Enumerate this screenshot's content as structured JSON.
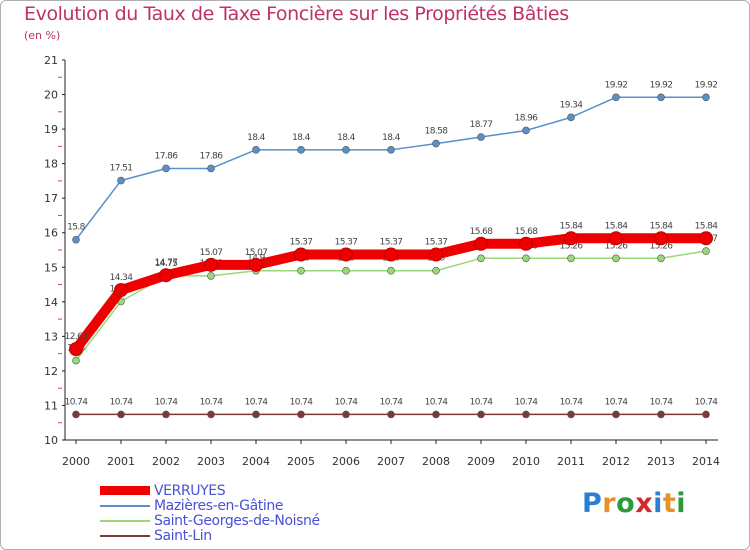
{
  "header": {
    "title": "Evolution du Taux de Taxe Foncière sur les Propriétés Bâties",
    "unit": "(en %)"
  },
  "logo": {
    "letters": [
      "P",
      "r",
      "o",
      "x",
      "i",
      "t",
      "i"
    ],
    "colors": [
      "#2a7fd4",
      "#e8902a",
      "#2a9a3a",
      "#d02a2a",
      "#2a7fd4",
      "#e8902a",
      "#2a9a3a"
    ]
  },
  "chart_data": {
    "type": "line",
    "title": "Evolution du Taux de Taxe Foncière sur les Propriétés Bâties",
    "ylabel": "(en %)",
    "xlabel": "",
    "ylim": [
      10,
      21
    ],
    "yticks": [
      "10",
      "11",
      "12",
      "13",
      "14",
      "15",
      "16",
      "17",
      "18",
      "19",
      "20",
      "21"
    ],
    "x": [
      "2000",
      "2001",
      "2002",
      "2003",
      "2004",
      "2005",
      "2006",
      "2007",
      "2008",
      "2009",
      "2010",
      "2011",
      "2012",
      "2013",
      "2014"
    ],
    "series": [
      {
        "name": "Mazières-en-Gâtine",
        "color": "#5b8fc8",
        "values": [
          15.8,
          17.51,
          17.86,
          17.86,
          18.4,
          18.4,
          18.4,
          18.4,
          18.58,
          18.77,
          18.96,
          19.34,
          19.92,
          19.92,
          19.92
        ],
        "labels": [
          "15.8",
          "17.51",
          "17.86",
          "17.86",
          "18.4",
          "18.4",
          "18.4",
          "18.4",
          "18.58",
          "18.77",
          "18.96",
          "19.34",
          "19.92",
          "19.92",
          "19.92"
        ]
      },
      {
        "name": "Saint-Georges-de-Noisné",
        "color": "#98d878",
        "values": [
          12.3,
          14.01,
          14.75,
          14.75,
          14.9,
          14.9,
          14.9,
          14.9,
          14.9,
          15.26,
          15.26,
          15.26,
          15.26,
          15.26,
          15.47
        ],
        "labels": [
          "12.3",
          "14.01",
          "14.75",
          "14.75",
          "14.9",
          "14.9",
          "14.9",
          "14.9",
          "14.9",
          "15.26",
          "15.26",
          "15.26",
          "15.26",
          "15.26",
          "15.47"
        ]
      },
      {
        "name": "Saint-Lin",
        "color": "#7a3a3a",
        "values": [
          10.74,
          10.74,
          10.74,
          10.74,
          10.74,
          10.74,
          10.74,
          10.74,
          10.74,
          10.74,
          10.74,
          10.74,
          10.74,
          10.74,
          10.74
        ],
        "labels": [
          "10.74",
          "10.74",
          "10.74",
          "10.74",
          "10.74",
          "10.74",
          "10.74",
          "10.74",
          "10.74",
          "10.74",
          "10.74",
          "10.74",
          "10.74",
          "10.74",
          "10.74"
        ]
      },
      {
        "name": "VERRUYES",
        "color": "#ee0000",
        "values": [
          12.63,
          14.34,
          14.77,
          15.07,
          15.07,
          15.37,
          15.37,
          15.37,
          15.37,
          15.68,
          15.68,
          15.84,
          15.84,
          15.84,
          15.84
        ],
        "labels": [
          "12.63",
          "14.34",
          "14.77",
          "15.07",
          "15.07",
          "15.37",
          "15.37",
          "15.37",
          "15.37",
          "15.68",
          "15.68",
          "15.84",
          "15.84",
          "15.84",
          "15.84"
        ]
      }
    ],
    "legend": [
      "VERRUYES",
      "Mazières-en-Gâtine",
      "Saint-Georges-de-Noisné",
      "Saint-Lin"
    ]
  }
}
